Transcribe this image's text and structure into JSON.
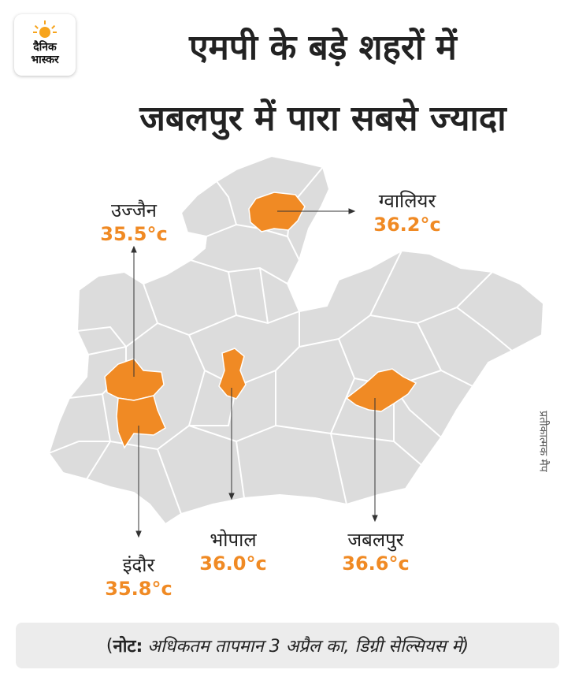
{
  "logo": {
    "line1": "दैनिक",
    "line2": "भास्कर",
    "accent": "#f7a41d"
  },
  "title": {
    "line1": "एमपी के बड़े शहरों में",
    "line2": "जबलपुर में पारा सबसे ज्यादा"
  },
  "colors": {
    "highlight": "#f08a24",
    "district_fill": "#dcdcdc",
    "district_border": "#ffffff"
  },
  "cities": [
    {
      "name": "ग्वालियर",
      "temp": "36.2°c"
    },
    {
      "name": "उज्जैन",
      "temp": "35.5°c"
    },
    {
      "name": "भोपाल",
      "temp": "36.0°c"
    },
    {
      "name": "इंदौर",
      "temp": "35.8°c"
    },
    {
      "name": "जबलपुर",
      "temp": "36.6°c"
    }
  ],
  "side_note": "प्रतीकात्मक मैप",
  "note": {
    "label": "नोट:",
    "text": "अधिकतम तापमान 3 अप्रैल का, डिग्री सेल्सियस में)",
    "open": "("
  }
}
